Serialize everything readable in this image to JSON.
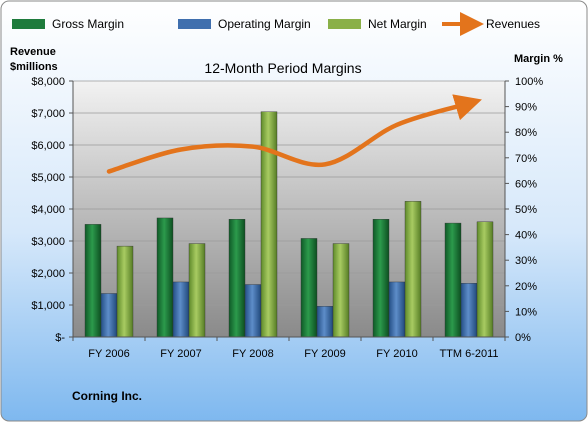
{
  "chart_data": {
    "type": "bar",
    "title": "12-Month Period Margins",
    "footer": "Corning Inc.",
    "left_axis": {
      "label_line1": "Revenue",
      "label_line2": "$millions",
      "min": 0,
      "max": 8000,
      "step": 1000,
      "tick_labels": [
        "$-",
        "$1,000",
        "$2,000",
        "$3,000",
        "$4,000",
        "$5,000",
        "$6,000",
        "$7,000",
        "$8,000"
      ]
    },
    "right_axis": {
      "label": "Margin %",
      "min": 0,
      "max": 100,
      "step": 10,
      "tick_labels": [
        "0%",
        "10%",
        "20%",
        "30%",
        "40%",
        "50%",
        "60%",
        "70%",
        "80%",
        "90%",
        "100%"
      ]
    },
    "categories": [
      "FY 2006",
      "FY 2007",
      "FY 2008",
      "FY 2009",
      "FY 2010",
      "TTM 6-2011"
    ],
    "series": [
      {
        "name": "Gross Margin",
        "type": "bar",
        "axis": "right",
        "color": "#1e7b3c",
        "values": [
          44,
          46.5,
          46,
          38.5,
          46,
          44.5
        ]
      },
      {
        "name": "Operating Margin",
        "type": "bar",
        "axis": "right",
        "color": "#3f6fae",
        "values": [
          17,
          21.5,
          20.5,
          12,
          21.5,
          21
        ]
      },
      {
        "name": "Net Margin",
        "type": "bar",
        "axis": "right",
        "color": "#8ab048",
        "values": [
          35.5,
          36.5,
          88,
          36.5,
          53,
          45
        ]
      },
      {
        "name": "Revenues",
        "type": "line",
        "axis": "left",
        "color": "#e3741c",
        "values": [
          5174,
          5860,
          5948,
          5395,
          6632,
          7300
        ]
      }
    ],
    "legend_position": "top",
    "grid": true
  }
}
